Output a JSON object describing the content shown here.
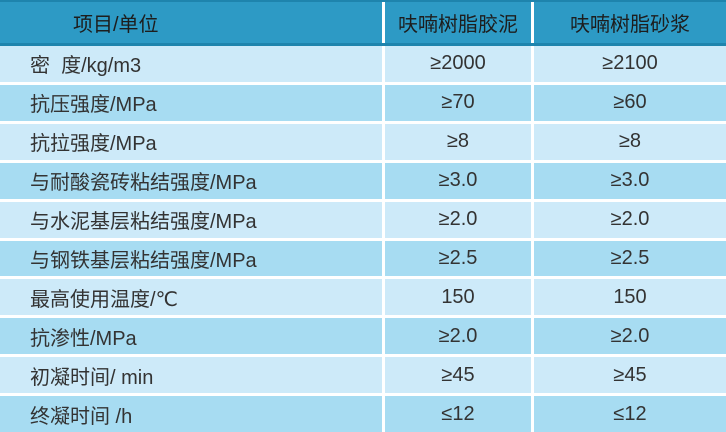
{
  "colors": {
    "header_bg": "#2D9AC5",
    "header_border": "#1E84AD",
    "row_light": "#CDEAF9",
    "row_dark": "#A7DCF2",
    "grid_line": "#FFFFFF",
    "text": "#333333"
  },
  "table": {
    "headers": [
      "项目/单位",
      "呋喃树脂胶泥",
      "呋喃树脂砂浆"
    ],
    "rows": [
      {
        "item": "密  度/kg/m3",
        "resin_cement": "≥2000",
        "resin_mortar": "≥2100"
      },
      {
        "item": "抗压强度/MPa",
        "resin_cement": "≥70",
        "resin_mortar": "≥60"
      },
      {
        "item": "抗拉强度/MPa",
        "resin_cement": "≥8",
        "resin_mortar": "≥8"
      },
      {
        "item": "与耐酸瓷砖粘结强度/MPa",
        "resin_cement": "≥3.0",
        "resin_mortar": "≥3.0"
      },
      {
        "item": "与水泥基层粘结强度/MPa",
        "resin_cement": "≥2.0",
        "resin_mortar": "≥2.0"
      },
      {
        "item": "与钢铁基层粘结强度/MPa",
        "resin_cement": "≥2.5",
        "resin_mortar": "≥2.5"
      },
      {
        "item": "最高使用温度/℃",
        "resin_cement": "150",
        "resin_mortar": "150"
      },
      {
        "item": "抗渗性/MPa",
        "resin_cement": "≥2.0",
        "resin_mortar": "≥2.0"
      },
      {
        "item": "初凝时间/ min",
        "resin_cement": "≥45",
        "resin_mortar": "≥45"
      },
      {
        "item": "终凝时间 /h",
        "resin_cement": "≤12",
        "resin_mortar": "≤12"
      }
    ]
  }
}
